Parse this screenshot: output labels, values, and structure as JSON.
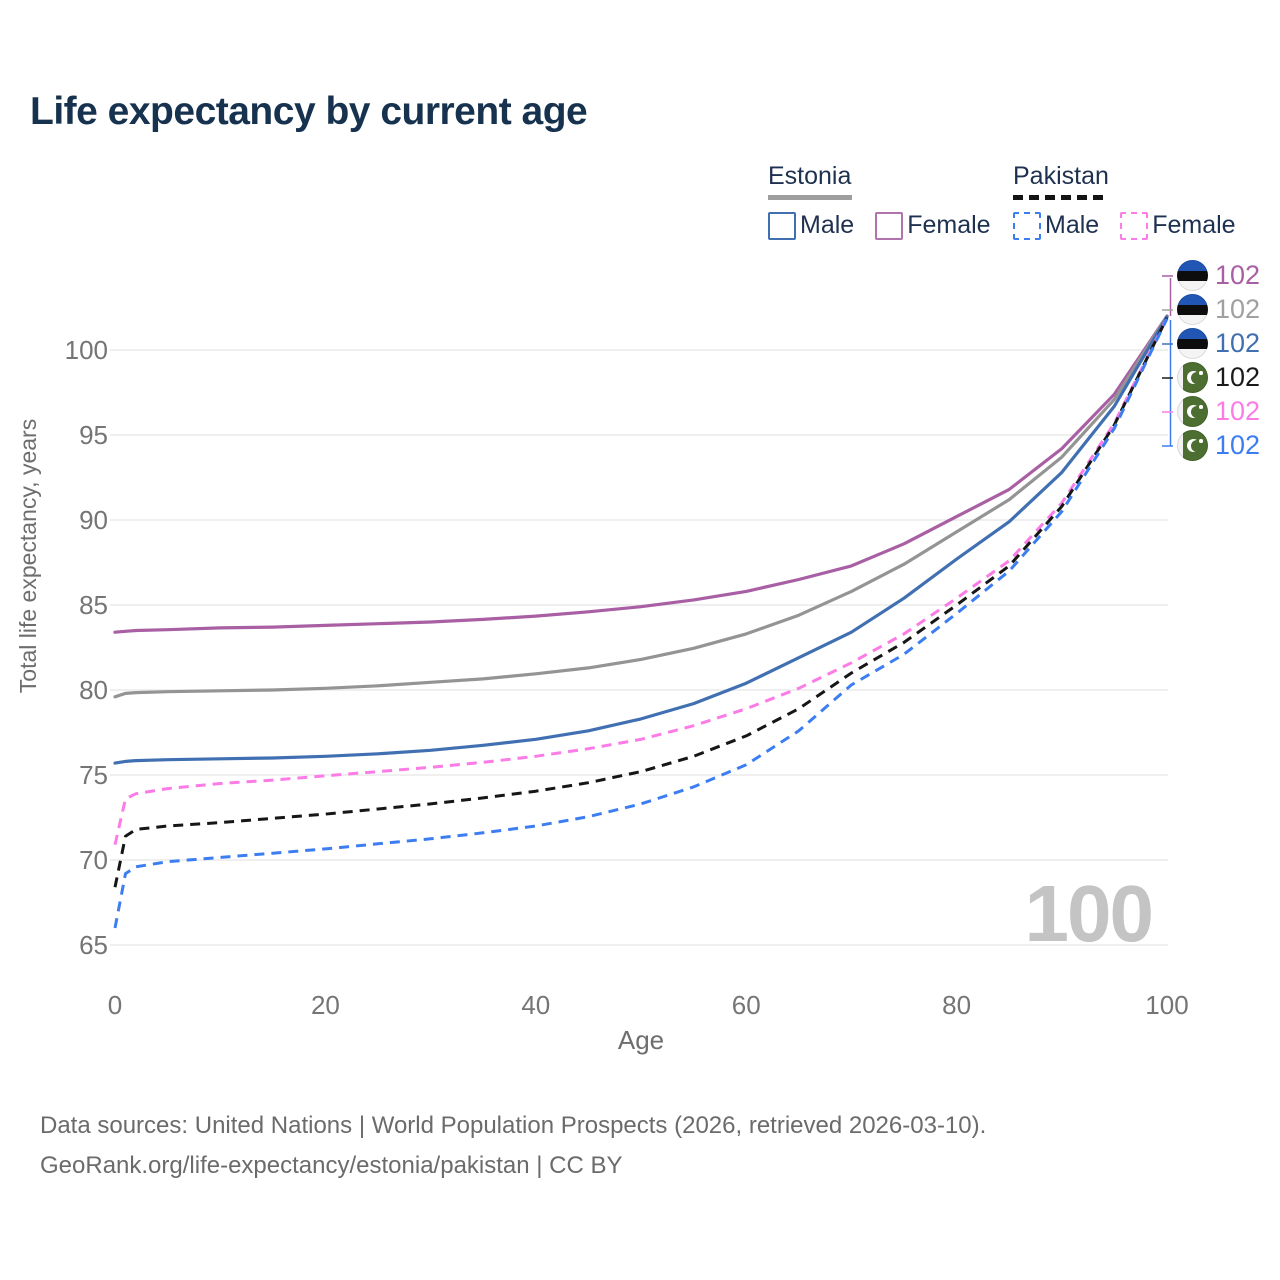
{
  "title": "Life expectancy by current age",
  "legend": {
    "groups": [
      {
        "name": "Estonia",
        "line_style": "solid",
        "line_color": "#9e9e9e",
        "items": [
          {
            "label": "Male",
            "color": "#4170b2"
          },
          {
            "label": "Female",
            "color": "#b173ab"
          }
        ]
      },
      {
        "name": "Pakistan",
        "line_style": "dashed",
        "line_color": "#141414",
        "items": [
          {
            "label": "Male",
            "color": "#3c7ef2"
          },
          {
            "label": "Female",
            "color": "#fb7be7"
          }
        ]
      }
    ]
  },
  "chart_data": {
    "type": "line",
    "title": "Life expectancy by current age",
    "xlabel": "Age",
    "ylabel": "Total life expectancy, years",
    "x_ticks": [
      0,
      20,
      40,
      60,
      80,
      100
    ],
    "y_ticks": [
      65,
      70,
      75,
      80,
      85,
      90,
      95,
      100
    ],
    "xlim": [
      0,
      100
    ],
    "ylim": [
      63,
      103
    ],
    "grid": "horizontal",
    "legend_position": "top-right",
    "ages": [
      0,
      1,
      2,
      5,
      10,
      15,
      20,
      25,
      30,
      35,
      40,
      45,
      50,
      55,
      60,
      65,
      70,
      75,
      80,
      85,
      90,
      95,
      100
    ],
    "series": [
      {
        "name": "Estonia Female",
        "color": "#a95fa3",
        "dash": false,
        "values": [
          83.4,
          83.45,
          83.5,
          83.55,
          83.65,
          83.7,
          83.8,
          83.9,
          84.0,
          84.15,
          84.35,
          84.6,
          84.9,
          85.3,
          85.8,
          86.5,
          87.3,
          88.6,
          90.2,
          91.8,
          94.2,
          97.4,
          102.0
        ]
      },
      {
        "name": "Estonia Both sexes",
        "color": "#949494",
        "dash": false,
        "values": [
          79.6,
          79.8,
          79.85,
          79.9,
          79.95,
          80.0,
          80.1,
          80.25,
          80.45,
          80.65,
          80.95,
          81.3,
          81.8,
          82.45,
          83.3,
          84.4,
          85.8,
          87.4,
          89.3,
          91.2,
          93.7,
          97.1,
          102.0
        ]
      },
      {
        "name": "Estonia Male",
        "color": "#4170b2",
        "dash": false,
        "values": [
          75.7,
          75.8,
          75.85,
          75.9,
          75.95,
          76.0,
          76.1,
          76.25,
          76.45,
          76.75,
          77.1,
          77.6,
          78.3,
          79.2,
          80.4,
          81.9,
          83.4,
          85.4,
          87.7,
          89.9,
          92.8,
          96.7,
          101.95
        ]
      },
      {
        "name": "Pakistan Female",
        "color": "#fb7be7",
        "dash": true,
        "values": [
          70.9,
          73.6,
          73.9,
          74.2,
          74.5,
          74.7,
          74.95,
          75.2,
          75.45,
          75.75,
          76.1,
          76.55,
          77.1,
          77.9,
          78.9,
          80.1,
          81.6,
          83.3,
          85.4,
          87.6,
          91.0,
          95.7,
          101.9
        ]
      },
      {
        "name": "Pakistan Both sexes",
        "color": "#161616",
        "dash": true,
        "values": [
          68.4,
          71.4,
          71.8,
          72.0,
          72.2,
          72.45,
          72.7,
          73.0,
          73.3,
          73.65,
          74.05,
          74.55,
          75.2,
          76.1,
          77.3,
          78.9,
          81.0,
          82.8,
          85.0,
          87.3,
          90.8,
          95.6,
          101.9
        ]
      },
      {
        "name": "Pakistan Male",
        "color": "#3c7ef2",
        "dash": true,
        "values": [
          66.0,
          69.2,
          69.6,
          69.9,
          70.15,
          70.4,
          70.65,
          70.95,
          71.25,
          71.6,
          72.0,
          72.55,
          73.3,
          74.3,
          75.6,
          77.6,
          80.3,
          82.1,
          84.5,
          87.0,
          90.5,
          95.4,
          101.85
        ]
      }
    ]
  },
  "end_labels": [
    {
      "country": "estonia",
      "series": "Estonia Female",
      "value": "102",
      "color": "#a95fa3"
    },
    {
      "country": "estonia",
      "series": "Estonia Both sexes",
      "value": "102",
      "color": "#a0a0a0"
    },
    {
      "country": "estonia",
      "series": "Estonia Male",
      "value": "102",
      "color": "#4170b2"
    },
    {
      "country": "pakistan",
      "series": "Pakistan Both sexes",
      "value": "102",
      "color": "#1a1a1a"
    },
    {
      "country": "pakistan",
      "series": "Pakistan Female",
      "value": "102",
      "color": "#fb7be7"
    },
    {
      "country": "pakistan",
      "series": "Pakistan Male",
      "value": "102",
      "color": "#3c7ef2"
    }
  ],
  "watermark": "100",
  "footer": {
    "line1": "Data sources: United Nations | World Population Prospects (2026, retrieved 2026-03-10).",
    "line2": "GeoRank.org/life-expectancy/estonia/pakistan | CC BY"
  }
}
